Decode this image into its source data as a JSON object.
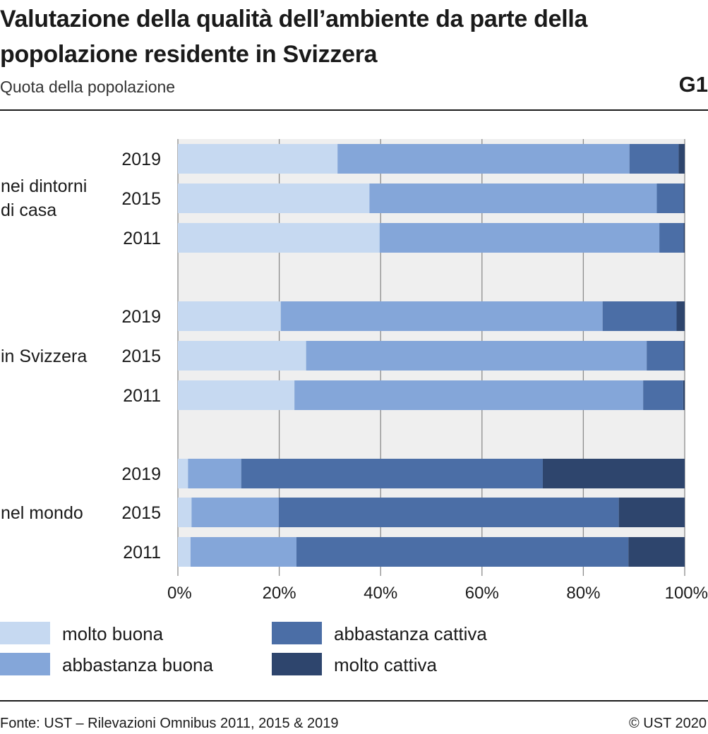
{
  "header": {
    "title": "Valutazione della qualità dell’ambiente da parte della popolazione residente in Svizzera",
    "subtitle": "Quota della popolazione",
    "code": "G1"
  },
  "footer": {
    "source": "Fonte: UST – Rilevazioni Omnibus 2011, 2015 & 2019",
    "copyright": "© UST 2020"
  },
  "colors": {
    "molto_buona": "#c6d9f1",
    "abbastanza_buona": "#84a6d9",
    "abbastanza_cattiva": "#4b6ea6",
    "molto_cattiva": "#2e456d",
    "plot_background": "#efefef",
    "grid": "#8c8c8c"
  },
  "chart_data": {
    "type": "bar",
    "orientation": "horizontal",
    "stacked": true,
    "units": "percent",
    "xlim": [
      0,
      100
    ],
    "x_ticks": [
      "0%",
      "20%",
      "40%",
      "60%",
      "80%",
      "100%"
    ],
    "grid": true,
    "legend_position": "bottom",
    "groups": [
      {
        "label": "nei dintorni di casa",
        "years": [
          "2019",
          "2015",
          "2011"
        ]
      },
      {
        "label": "in Svizzera",
        "years": [
          "2019",
          "2015",
          "2011"
        ]
      },
      {
        "label": "nel mondo",
        "years": [
          "2019",
          "2015",
          "2011"
        ]
      }
    ],
    "series": [
      {
        "name": "molto buona",
        "color": "#c6d9f1",
        "values": [
          31.5,
          37.8,
          39.8,
          20.3,
          25.3,
          23.0,
          2.0,
          2.7,
          2.5
        ]
      },
      {
        "name": "abbastanza buona",
        "color": "#84a6d9",
        "values": [
          57.6,
          56.7,
          55.2,
          63.5,
          67.2,
          68.8,
          10.5,
          17.2,
          20.9
        ]
      },
      {
        "name": "abbastanza cattiva",
        "color": "#4b6ea6",
        "values": [
          9.7,
          5.3,
          4.8,
          14.6,
          7.3,
          7.9,
          59.5,
          67.1,
          65.5
        ]
      },
      {
        "name": "molto cattiva",
        "color": "#2e456d",
        "values": [
          1.2,
          0.2,
          0.2,
          1.6,
          0.2,
          0.3,
          28.0,
          13.0,
          11.1
        ]
      }
    ]
  }
}
